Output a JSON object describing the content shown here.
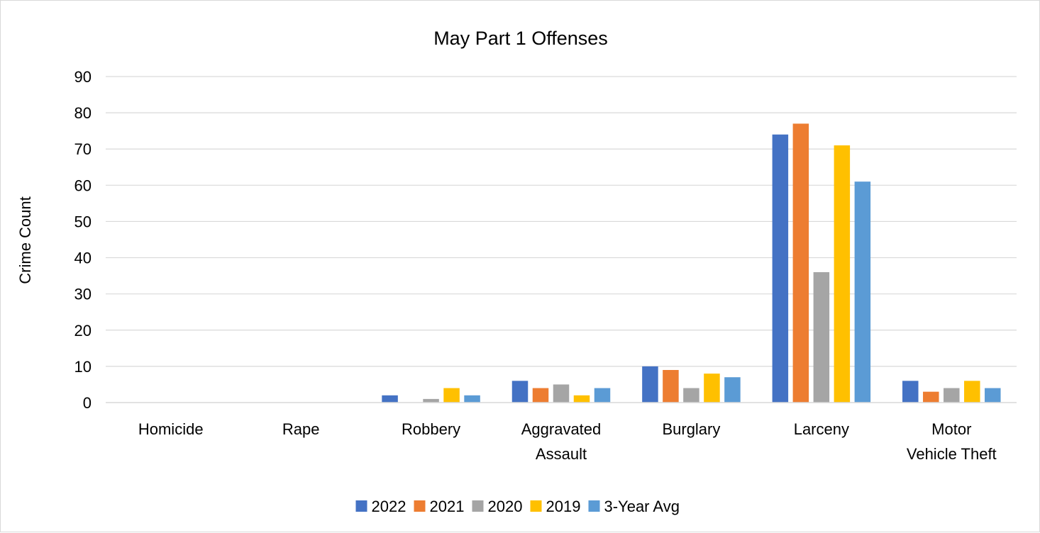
{
  "chart_data": {
    "type": "bar",
    "title": "May Part 1 Offenses",
    "xlabel": "",
    "ylabel": "Crime Count",
    "ylim": [
      0,
      90
    ],
    "yticks": [
      0,
      10,
      20,
      30,
      40,
      50,
      60,
      70,
      80,
      90
    ],
    "grid": true,
    "legend_position": "bottom",
    "categories": [
      [
        "Homicide"
      ],
      [
        "Rape"
      ],
      [
        "Robbery"
      ],
      [
        "Aggravated",
        "Assault"
      ],
      [
        "Burglary"
      ],
      [
        "Larceny"
      ],
      [
        "Motor",
        "Vehicle Theft"
      ]
    ],
    "series": [
      {
        "name": "2022",
        "color": "#4472c4",
        "values": [
          0,
          0,
          2,
          6,
          10,
          74,
          6
        ]
      },
      {
        "name": "2021",
        "color": "#ed7d31",
        "values": [
          0,
          0,
          0,
          4,
          9,
          77,
          3
        ]
      },
      {
        "name": "2020",
        "color": "#a5a5a5",
        "values": [
          0,
          0,
          1,
          5,
          4,
          36,
          4
        ]
      },
      {
        "name": "2019",
        "color": "#ffc000",
        "values": [
          0,
          0,
          4,
          2,
          8,
          71,
          6
        ]
      },
      {
        "name": "3-Year Avg",
        "color": "#5b9bd5",
        "values": [
          0,
          0,
          2,
          4,
          7,
          61,
          4
        ]
      }
    ]
  }
}
